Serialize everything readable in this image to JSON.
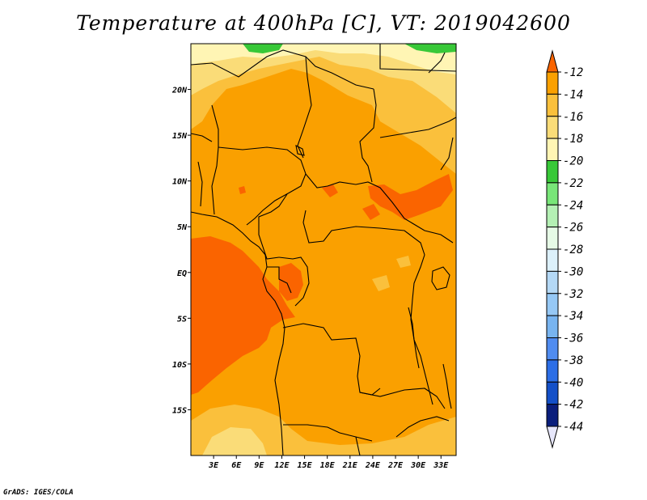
{
  "title": "Temperature at 400hPa [C], VT: 2019042600",
  "footer": "GrADS: IGES/COLA",
  "colors": {
    "t_m14_m12": "#fa6400",
    "t_m16_m14": "#faa000",
    "t_m18_m16": "#fac03c",
    "t_m20_m18": "#fadc78",
    "t_m22_m20": "#fff5b4",
    "t_m24_m22": "#38c838",
    "border": "#000000"
  },
  "chart_data": {
    "type": "heatmap",
    "variable": "Temperature at 400hPa",
    "units": "C",
    "valid_time": "2019042600",
    "lon_range": [
      0,
      35
    ],
    "lat_range": [
      -20,
      25
    ],
    "x_ticks": [
      "3E",
      "6E",
      "9E",
      "12E",
      "15E",
      "18E",
      "21E",
      "24E",
      "27E",
      "30E",
      "33E"
    ],
    "x_tick_values": [
      3,
      6,
      9,
      12,
      15,
      18,
      21,
      24,
      27,
      30,
      33
    ],
    "y_ticks": [
      "20N",
      "15N",
      "10N",
      "5N",
      "EQ",
      "5S",
      "10S",
      "15S"
    ],
    "y_tick_values": [
      20,
      15,
      10,
      5,
      0,
      -5,
      -10,
      -15
    ],
    "colorbar": {
      "labels": [
        "-12",
        "-14",
        "-16",
        "-18",
        "-20",
        "-22",
        "-24",
        "-26",
        "-28",
        "-30",
        "-32",
        "-34",
        "-36",
        "-38",
        "-40",
        "-42",
        "-44"
      ],
      "colors": [
        "#fa6400",
        "#faa000",
        "#fac03c",
        "#fadc78",
        "#fff5b4",
        "#38c838",
        "#78e678",
        "#b4f0b4",
        "#e6fae6",
        "#dcf0fa",
        "#b4d8f5",
        "#96c8f5",
        "#78b4f0",
        "#508cf0",
        "#2c6ee6",
        "#1450c8",
        "#0a1e7c",
        "#e6e6fa"
      ]
    }
  }
}
